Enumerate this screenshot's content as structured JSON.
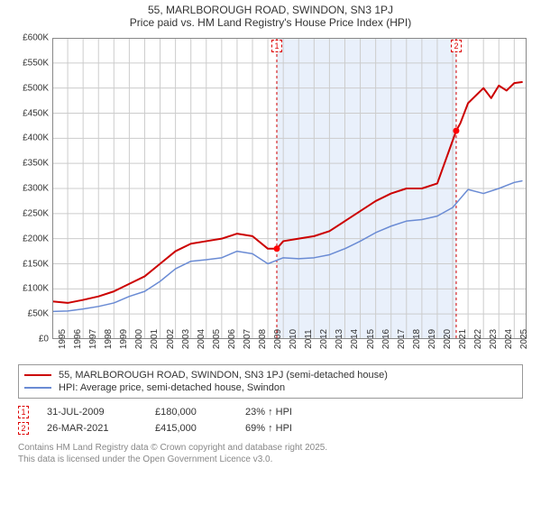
{
  "title": {
    "line1": "55, MARLBOROUGH ROAD, SWINDON, SN3 1PJ",
    "line2": "Price paid vs. HM Land Registry's House Price Index (HPI)"
  },
  "chart": {
    "type": "line",
    "background_color": "#ffffff",
    "grid_color": "#cccccc",
    "shaded_band": {
      "from_year": 2009.58,
      "to_year": 2021.23,
      "fill": "#e9f0fb"
    },
    "y_axis": {
      "min": 0,
      "max": 600000,
      "tick_step": 50000,
      "tick_labels": [
        "£0",
        "£50K",
        "£100K",
        "£150K",
        "£200K",
        "£250K",
        "£300K",
        "£350K",
        "£400K",
        "£450K",
        "£500K",
        "£550K",
        "£600K"
      ],
      "label_fontsize": 10,
      "label_color": "#333333"
    },
    "x_axis": {
      "min": 1995,
      "max": 2025.8,
      "tick_step": 1,
      "tick_labels": [
        "1995",
        "1996",
        "1997",
        "1998",
        "1999",
        "2000",
        "2001",
        "2002",
        "2003",
        "2004",
        "2005",
        "2006",
        "2007",
        "2008",
        "2009",
        "2010",
        "2011",
        "2012",
        "2013",
        "2014",
        "2015",
        "2016",
        "2017",
        "2018",
        "2019",
        "2020",
        "2021",
        "2022",
        "2023",
        "2024",
        "2025"
      ],
      "label_fontsize": 10,
      "label_color": "#333333"
    },
    "series": [
      {
        "name": "property_price",
        "color": "#cc0000",
        "line_width": 2,
        "points": [
          [
            1995,
            75000
          ],
          [
            1996,
            72000
          ],
          [
            1997,
            78000
          ],
          [
            1998,
            85000
          ],
          [
            1999,
            95000
          ],
          [
            2000,
            110000
          ],
          [
            2001,
            125000
          ],
          [
            2002,
            150000
          ],
          [
            2003,
            175000
          ],
          [
            2004,
            190000
          ],
          [
            2005,
            195000
          ],
          [
            2006,
            200000
          ],
          [
            2007,
            210000
          ],
          [
            2008,
            205000
          ],
          [
            2009,
            180000
          ],
          [
            2009.58,
            180000
          ],
          [
            2010,
            195000
          ],
          [
            2011,
            200000
          ],
          [
            2012,
            205000
          ],
          [
            2013,
            215000
          ],
          [
            2014,
            235000
          ],
          [
            2015,
            255000
          ],
          [
            2016,
            275000
          ],
          [
            2017,
            290000
          ],
          [
            2018,
            300000
          ],
          [
            2019,
            300000
          ],
          [
            2020,
            310000
          ],
          [
            2021.23,
            415000
          ],
          [
            2021.5,
            430000
          ],
          [
            2022,
            470000
          ],
          [
            2023,
            500000
          ],
          [
            2023.5,
            480000
          ],
          [
            2024,
            505000
          ],
          [
            2024.5,
            495000
          ],
          [
            2025,
            510000
          ],
          [
            2025.5,
            512000
          ]
        ]
      },
      {
        "name": "hpi",
        "color": "#6a8bd4",
        "line_width": 1.5,
        "points": [
          [
            1995,
            55000
          ],
          [
            1996,
            56000
          ],
          [
            1997,
            60000
          ],
          [
            1998,
            65000
          ],
          [
            1999,
            72000
          ],
          [
            2000,
            85000
          ],
          [
            2001,
            95000
          ],
          [
            2002,
            115000
          ],
          [
            2003,
            140000
          ],
          [
            2004,
            155000
          ],
          [
            2005,
            158000
          ],
          [
            2006,
            162000
          ],
          [
            2007,
            175000
          ],
          [
            2008,
            170000
          ],
          [
            2009,
            150000
          ],
          [
            2010,
            162000
          ],
          [
            2011,
            160000
          ],
          [
            2012,
            162000
          ],
          [
            2013,
            168000
          ],
          [
            2014,
            180000
          ],
          [
            2015,
            195000
          ],
          [
            2016,
            212000
          ],
          [
            2017,
            225000
          ],
          [
            2018,
            235000
          ],
          [
            2019,
            238000
          ],
          [
            2020,
            245000
          ],
          [
            2021,
            262000
          ],
          [
            2022,
            298000
          ],
          [
            2023,
            290000
          ],
          [
            2024,
            300000
          ],
          [
            2025,
            312000
          ],
          [
            2025.5,
            315000
          ]
        ]
      }
    ],
    "sale_markers": [
      {
        "id": "1",
        "year": 2009.58,
        "price": 180000,
        "marker_color": "#ff0000",
        "dash_color": "#d00000"
      },
      {
        "id": "2",
        "year": 2021.23,
        "price": 415000,
        "marker_color": "#ff0000",
        "dash_color": "#d00000"
      }
    ],
    "sale_dot_radius": 3.5
  },
  "legend": {
    "items": [
      {
        "label": "55, MARLBOROUGH ROAD, SWINDON, SN3 1PJ (semi-detached house)",
        "color": "#cc0000",
        "line_width": 2
      },
      {
        "label": "HPI: Average price, semi-detached house, Swindon",
        "color": "#6a8bd4",
        "line_width": 1.5
      }
    ]
  },
  "sales_table": {
    "rows": [
      {
        "marker": "1",
        "date": "31-JUL-2009",
        "price": "£180,000",
        "delta": "23% ↑ HPI"
      },
      {
        "marker": "2",
        "date": "26-MAR-2021",
        "price": "£415,000",
        "delta": "69% ↑ HPI"
      }
    ]
  },
  "footer": {
    "line1": "Contains HM Land Registry data © Crown copyright and database right 2025.",
    "line2": "This data is licensed under the Open Government Licence v3.0."
  }
}
